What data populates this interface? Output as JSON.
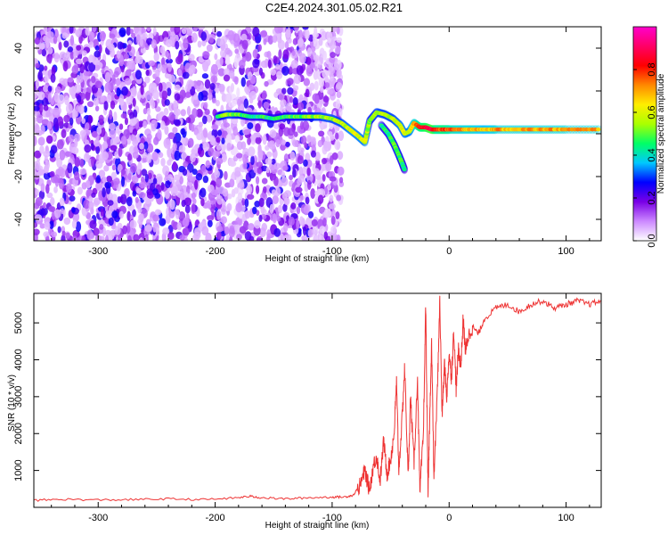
{
  "title": "C2E4.2024.301.05.02.R21",
  "chart_data": [
    {
      "type": "heatmap",
      "xlabel": "Height of straight line (km)",
      "ylabel": "Frequency (Hz)",
      "xlim": [
        -355,
        130
      ],
      "ylim": [
        -50,
        50
      ],
      "xticks": [
        -300,
        -200,
        -100,
        0,
        100
      ],
      "xtick_labels": [
        "-300",
        "-200",
        "-100",
        "0",
        "100"
      ],
      "yticks": [
        -40,
        -20,
        0,
        20,
        40
      ],
      "ytick_labels": [
        "-40",
        "-20",
        "0",
        "20",
        "40"
      ],
      "noise_region_x": [
        -355,
        -92
      ],
      "ridge": {
        "x": [
          -198,
          -190,
          -180,
          -170,
          -160,
          -150,
          -140,
          -130,
          -120,
          -110,
          -100,
          -92,
          -85,
          -78,
          -72,
          -68,
          -62,
          -55,
          -48,
          -42,
          -38,
          -34,
          -30,
          -25,
          -20,
          -15,
          -10,
          -5,
          0,
          10,
          20,
          30,
          40,
          60,
          80,
          100,
          130
        ],
        "y": [
          8,
          9,
          9,
          8,
          8,
          7,
          8,
          8,
          8,
          8,
          7,
          5,
          2,
          -1,
          -4,
          6,
          10,
          9,
          7,
          4,
          0,
          1,
          5,
          3,
          3,
          2,
          2,
          2,
          2,
          2,
          2,
          2,
          2,
          2,
          2,
          2,
          2
        ],
        "amplitude": [
          0.45,
          0.55,
          0.5,
          0.45,
          0.45,
          0.45,
          0.45,
          0.5,
          0.5,
          0.55,
          0.55,
          0.55,
          0.6,
          0.6,
          0.6,
          0.5,
          0.55,
          0.55,
          0.55,
          0.6,
          0.6,
          0.6,
          0.7,
          0.8,
          0.85,
          0.9,
          0.75,
          0.8,
          0.75,
          0.7,
          0.7,
          0.65,
          0.7,
          0.7,
          0.7,
          0.7,
          0.7
        ]
      },
      "branch": {
        "x": [
          -58,
          -52,
          -47,
          -43,
          -40,
          -38
        ],
        "y": [
          4,
          0,
          -5,
          -10,
          -14,
          -17
        ],
        "amplitude": [
          0.45,
          0.45,
          0.5,
          0.5,
          0.45,
          0.4
        ]
      },
      "colorbar": {
        "label": "Normalized spectral amplitude",
        "range": [
          0,
          1
        ],
        "ticks": [
          0,
          0.2,
          0.4,
          0.6,
          0.8
        ],
        "tick_labels": [
          "0.0",
          "0.2",
          "0.4",
          "0.6",
          "0.8"
        ],
        "stops": [
          "#ffffff",
          "#cc88ff",
          "#7a00e6",
          "#0000ff",
          "#00c8ff",
          "#00ff66",
          "#aaff00",
          "#ffee00",
          "#ff8800",
          "#ff0000",
          "#ff0066",
          "#ff00cc"
        ]
      }
    },
    {
      "type": "line",
      "xlabel": "Height of straight line (km)",
      "ylabel": "SNR (10 * v/v)",
      "xlim": [
        -355,
        130
      ],
      "ylim": [
        0,
        5800
      ],
      "xticks": [
        -300,
        -200,
        -100,
        0,
        100
      ],
      "xtick_labels": [
        "-300",
        "-200",
        "-100",
        "0",
        "100"
      ],
      "yticks": [
        1000,
        2000,
        3000,
        4000,
        5000
      ],
      "ytick_labels": [
        "1000",
        "2000",
        "3000",
        "4000",
        "5000"
      ],
      "line_color": "#ee3333",
      "series": [
        {
          "x": [
            -355,
            -330,
            -300,
            -270,
            -240,
            -210,
            -185,
            -170,
            -160,
            -140,
            -120,
            -100,
            -90,
            -82,
            -76,
            -72,
            -68,
            -65,
            -62,
            -59,
            -56,
            -53,
            -50,
            -47,
            -45,
            -43,
            -40,
            -38,
            -35,
            -33,
            -30,
            -27,
            -25,
            -22,
            -20,
            -18,
            -17,
            -15,
            -13,
            -10,
            -8,
            -6,
            -4,
            -2,
            0,
            2,
            4,
            6,
            8,
            10,
            12,
            14,
            16,
            20,
            25,
            30,
            40,
            50,
            60,
            70,
            80,
            90,
            100,
            110,
            120,
            130
          ],
          "y": [
            190,
            220,
            200,
            210,
            230,
            210,
            250,
            300,
            260,
            230,
            260,
            280,
            280,
            330,
            600,
            1000,
            450,
            1100,
            1400,
            700,
            1800,
            900,
            1300,
            2000,
            3400,
            1000,
            2500,
            3800,
            800,
            3000,
            1200,
            3500,
            400,
            2000,
            5500,
            300,
            1800,
            4500,
            800,
            3200,
            5600,
            2500,
            3900,
            3000,
            4200,
            3500,
            4800,
            3200,
            4300,
            3800,
            5100,
            4200,
            4600,
            4900,
            4700,
            5100,
            5400,
            5500,
            5300,
            5500,
            5600,
            5400,
            5500,
            5600,
            5500,
            5600
          ]
        }
      ]
    }
  ]
}
